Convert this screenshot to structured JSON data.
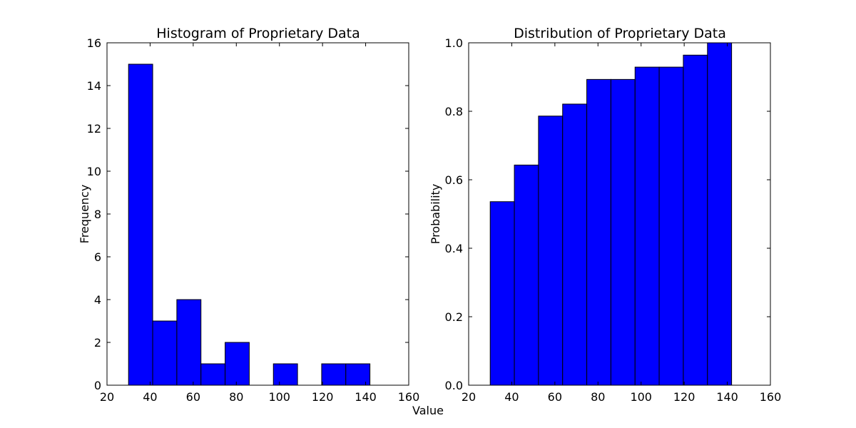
{
  "chart_data": [
    {
      "type": "bar",
      "title": "Histogram of Proprietary Data",
      "xlabel": "",
      "ylabel": "Frequency",
      "xlim": [
        20,
        160
      ],
      "ylim": [
        0,
        16
      ],
      "xticks": [
        "20",
        "40",
        "60",
        "80",
        "100",
        "120",
        "140",
        "160"
      ],
      "yticks": [
        "0",
        "2",
        "4",
        "6",
        "8",
        "10",
        "12",
        "14",
        "16"
      ],
      "grid": false,
      "bar_color": "#0000ff",
      "bins": [
        {
          "x0": 30.0,
          "x1": 41.2,
          "value": 15
        },
        {
          "x0": 41.2,
          "x1": 52.4,
          "value": 3
        },
        {
          "x0": 52.4,
          "x1": 63.6,
          "value": 4
        },
        {
          "x0": 63.6,
          "x1": 74.8,
          "value": 1
        },
        {
          "x0": 74.8,
          "x1": 86.0,
          "value": 2
        },
        {
          "x0": 86.0,
          "x1": 97.2,
          "value": 0
        },
        {
          "x0": 97.2,
          "x1": 108.4,
          "value": 1
        },
        {
          "x0": 108.4,
          "x1": 119.6,
          "value": 0
        },
        {
          "x0": 119.6,
          "x1": 130.8,
          "value": 1
        },
        {
          "x0": 130.8,
          "x1": 142.0,
          "value": 1
        }
      ]
    },
    {
      "type": "bar",
      "title": "Distribution of Proprietary Data",
      "xlabel": "",
      "ylabel": "Probability",
      "xlim": [
        20,
        160
      ],
      "ylim": [
        0,
        1.0
      ],
      "xticks": [
        "20",
        "40",
        "60",
        "80",
        "100",
        "120",
        "140",
        "160"
      ],
      "yticks": [
        "0.0",
        "0.2",
        "0.4",
        "0.6",
        "0.8",
        "1.0"
      ],
      "grid": false,
      "bar_color": "#0000ff",
      "bins": [
        {
          "x0": 30.0,
          "x1": 41.2,
          "value": 0.536
        },
        {
          "x0": 41.2,
          "x1": 52.4,
          "value": 0.643
        },
        {
          "x0": 52.4,
          "x1": 63.6,
          "value": 0.786
        },
        {
          "x0": 63.6,
          "x1": 74.8,
          "value": 0.821
        },
        {
          "x0": 74.8,
          "x1": 86.0,
          "value": 0.893
        },
        {
          "x0": 86.0,
          "x1": 97.2,
          "value": 0.893
        },
        {
          "x0": 97.2,
          "x1": 108.4,
          "value": 0.929
        },
        {
          "x0": 108.4,
          "x1": 119.6,
          "value": 0.929
        },
        {
          "x0": 119.6,
          "x1": 130.8,
          "value": 0.964
        },
        {
          "x0": 130.8,
          "x1": 142.0,
          "value": 1.0
        }
      ]
    }
  ],
  "figure": {
    "shared_xlabel": "Value"
  }
}
